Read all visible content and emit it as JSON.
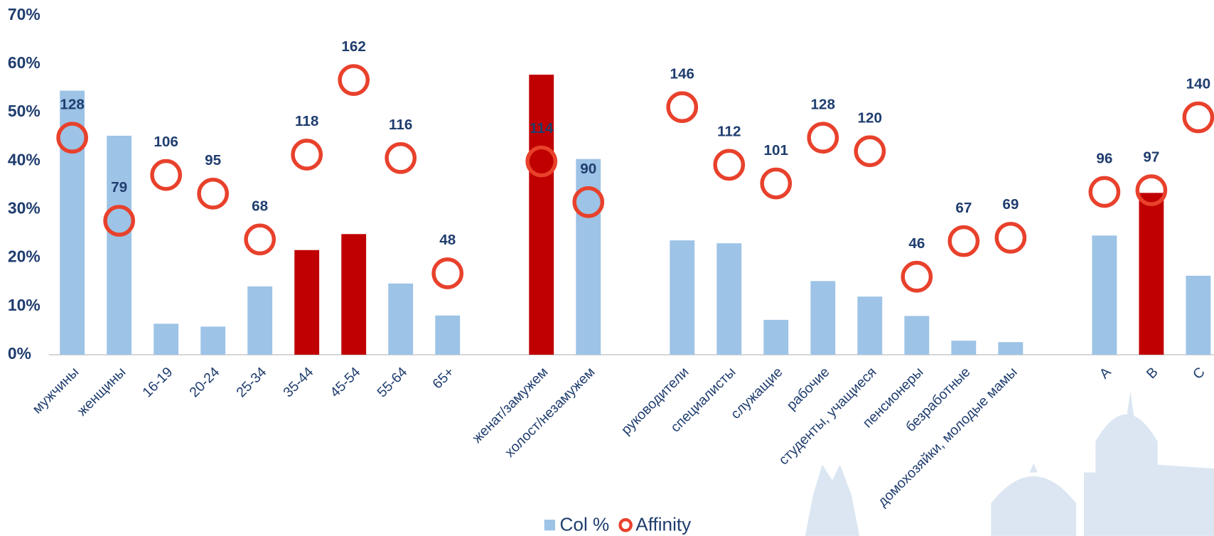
{
  "chart_data": {
    "type": "bar",
    "categories": [
      "мужчины",
      "женщины",
      "16-19",
      "20-24",
      "25-34",
      "35-44",
      "45-54",
      "55-64",
      "65+",
      null,
      "женат/замужем",
      "холост/незамужем",
      null,
      "руководители",
      "специалисты",
      "служащие",
      "рабочие",
      "студенты, учащиеся",
      "пенсионеры",
      "безработные",
      "домохозяйки, молодые мамы",
      null,
      "A",
      "B",
      "C"
    ],
    "series": [
      {
        "name": "Col %",
        "type": "bar",
        "color": "#9dc3e6",
        "colors": [
          "#9dc3e6",
          "#9dc3e6",
          "#9dc3e6",
          "#9dc3e6",
          "#9dc3e6",
          "#c00000",
          "#c00000",
          "#9dc3e6",
          "#9dc3e6",
          null,
          "#c00000",
          "#9dc3e6",
          null,
          "#9dc3e6",
          "#9dc3e6",
          "#9dc3e6",
          "#9dc3e6",
          "#9dc3e6",
          "#9dc3e6",
          "#9dc3e6",
          "#9dc3e6",
          null,
          "#9dc3e6",
          "#c00000",
          "#9dc3e6"
        ],
        "values": [
          54.5,
          45.2,
          6.4,
          5.8,
          14.1,
          21.6,
          24.9,
          14.7,
          8.1,
          null,
          57.8,
          40.4,
          null,
          23.6,
          23.0,
          7.2,
          15.2,
          12.0,
          8.0,
          2.9,
          2.6,
          null,
          24.6,
          33.4,
          16.3
        ]
      },
      {
        "name": "Affinity",
        "type": "scatter",
        "axis": "y2",
        "color": "#e8412c",
        "values": [
          128,
          79,
          106,
          95,
          68,
          118,
          162,
          116,
          48,
          null,
          114,
          90,
          null,
          146,
          112,
          101,
          128,
          120,
          46,
          67,
          69,
          null,
          96,
          97,
          140
        ]
      }
    ],
    "ylim": [
      0,
      70
    ],
    "yticks": [
      {
        "value": 0,
        "label": "0%"
      },
      {
        "value": 10,
        "label": "10%"
      },
      {
        "value": 20,
        "label": "20%"
      },
      {
        "value": 30,
        "label": "30%"
      },
      {
        "value": 40,
        "label": "40%"
      },
      {
        "value": 50,
        "label": "50%"
      },
      {
        "value": 60,
        "label": "60%"
      },
      {
        "value": 70,
        "label": "70%"
      }
    ],
    "y2lim": [
      0,
      200
    ],
    "legend": "bottom"
  }
}
